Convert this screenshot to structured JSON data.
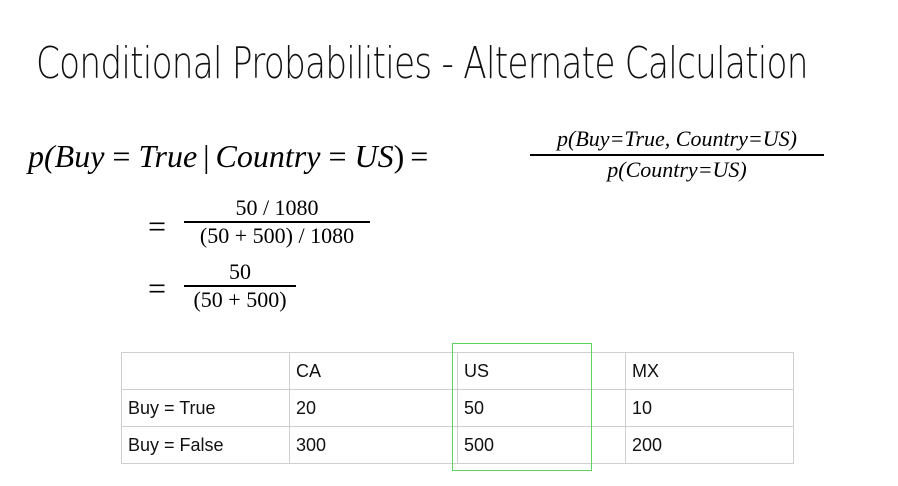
{
  "slide": {
    "title": "Conditional Probabilities - Alternate Calculation"
  },
  "equation": {
    "lhs": {
      "p_open": "p(",
      "buy": "Buy",
      "eq1": " = ",
      "true": "True",
      "given": "|",
      "country": "Country",
      "eq2": " = ",
      "us": "US",
      "close": ")",
      "equals": "="
    },
    "rhs_numerator": "p(Buy=True, Country=US)",
    "rhs_denominator": "p(Country=US)",
    "step2": {
      "equals": "=",
      "numerator": "50 / 1080",
      "denominator": "(50 + 500) / 1080"
    },
    "step3": {
      "equals": "=",
      "numerator": "50",
      "denominator": "(50 + 500)"
    }
  },
  "table": {
    "header": [
      "",
      "CA",
      "US",
      "MX"
    ],
    "rows": [
      [
        "Buy = True",
        "20",
        "50",
        "10"
      ],
      [
        "Buy = False",
        "300",
        "500",
        "200"
      ]
    ],
    "highlighted_column": "US",
    "highlight_color": "#5fd35f"
  }
}
